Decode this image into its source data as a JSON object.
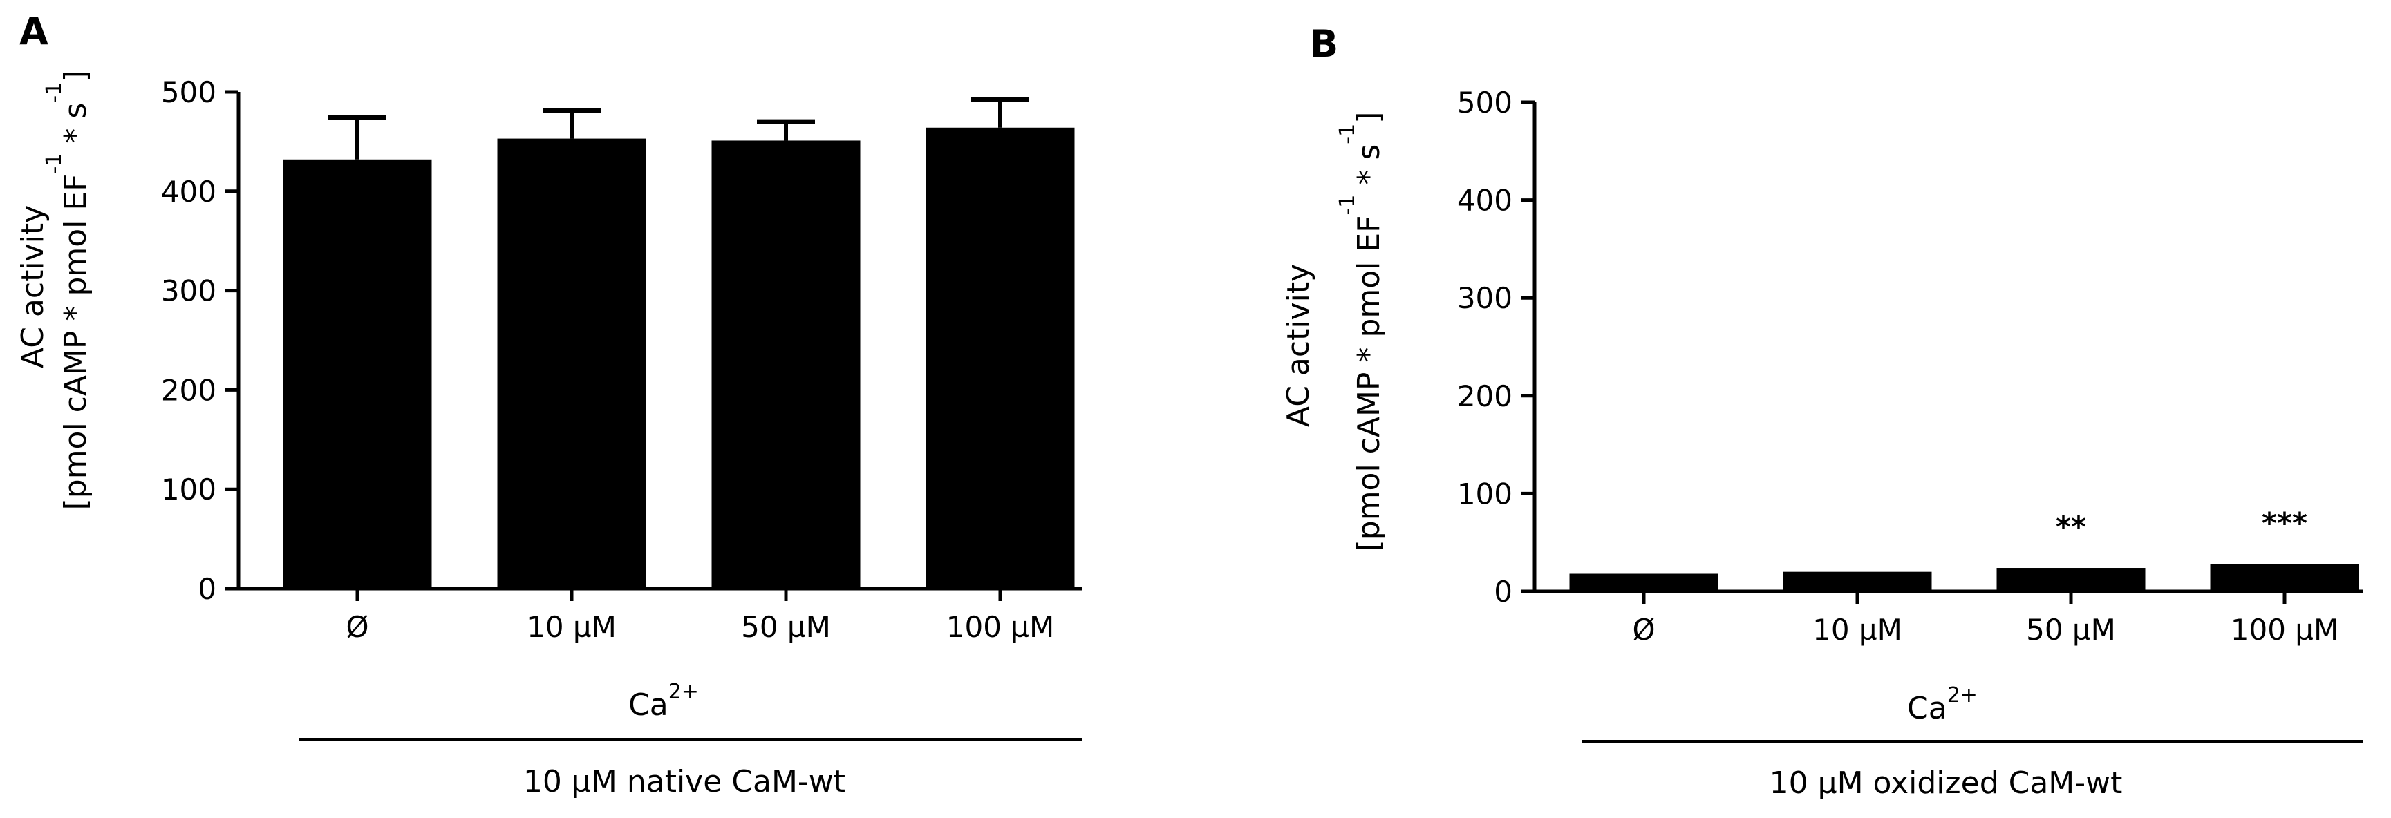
{
  "figure": {
    "panels": [
      {
        "letter": "A",
        "ylabel_line1": "AC activity",
        "ylabel_line2": "[pmol cAMP * pmol EF",
        "ylabel_exp1": "-1",
        "ylabel_mid": " * s",
        "ylabel_exp2": "-1",
        "ylabel_end": "]",
        "factor_label": "Ca",
        "factor_sup": "2+",
        "group_label": "10 µM native CaM-wt"
      },
      {
        "letter": "B",
        "ylabel_line1": "AC activity",
        "ylabel_line2": "[pmol cAMP * pmol EF",
        "ylabel_exp1": "-1",
        "ylabel_mid": " * s",
        "ylabel_exp2": "-1",
        "ylabel_end": "]",
        "factor_label": "Ca",
        "factor_sup": "2+",
        "group_label": "10 µM oxidized CaM-wt"
      }
    ]
  },
  "chart_data": [
    {
      "type": "bar",
      "panel": "A",
      "categories": [
        "Ø",
        "10 µM",
        "50 µM",
        "100 µM"
      ],
      "values": [
        432,
        453,
        451,
        464
      ],
      "error_plus": [
        42,
        28,
        19,
        28
      ],
      "significance": [
        "",
        "",
        "",
        ""
      ],
      "ylim": [
        0,
        500
      ],
      "yticks": [
        0,
        100,
        200,
        300,
        400,
        500
      ],
      "bar_color": "#000000",
      "grid": false,
      "legend": "none"
    },
    {
      "type": "bar",
      "panel": "B",
      "categories": [
        "Ø",
        "10 µM",
        "50 µM",
        "100 µM"
      ],
      "values": [
        18,
        20,
        24,
        28
      ],
      "error_plus": [
        1,
        1,
        1,
        1
      ],
      "significance": [
        "",
        "",
        "**",
        "***"
      ],
      "ylim": [
        0,
        500
      ],
      "yticks": [
        0,
        100,
        200,
        300,
        400,
        500
      ],
      "bar_color": "#000000",
      "grid": false,
      "legend": "none"
    }
  ]
}
